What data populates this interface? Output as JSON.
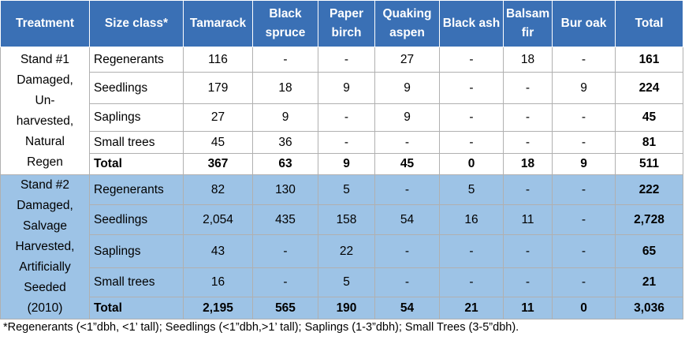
{
  "table": {
    "header": [
      "Treatment",
      "Size class*",
      "Tamarack",
      "Black spruce",
      "Paper birch",
      "Quaking aspen",
      "Black ash",
      "Balsam fir",
      "Bur oak",
      "Total"
    ],
    "groups": [
      {
        "treatment_lines": [
          "Stand #1",
          "Damaged,",
          "Un-",
          "harvested,",
          "Natural",
          "Regen"
        ],
        "rows": [
          {
            "size_class": "Regenerants",
            "values": [
              "116",
              "-",
              "-",
              "27",
              "-",
              "18",
              "-",
              "161"
            ]
          },
          {
            "size_class": "Seedlings",
            "values": [
              "179",
              "18",
              "9",
              "9",
              "-",
              "-",
              "9",
              "224"
            ]
          },
          {
            "size_class": "Saplings",
            "values": [
              "27",
              "9",
              "-",
              "9",
              "-",
              "-",
              "-",
              "45"
            ]
          },
          {
            "size_class": "Small trees",
            "values": [
              "45",
              "36",
              "-",
              "-",
              "-",
              "-",
              "-",
              "81"
            ]
          },
          {
            "size_class": "Total",
            "values": [
              "367",
              "63",
              "9",
              "45",
              "0",
              "18",
              "9",
              "511"
            ]
          }
        ]
      },
      {
        "treatment_lines": [
          "Stand #2",
          "Damaged,",
          "Salvage",
          "Harvested,",
          "Artificially",
          "Seeded",
          "(2010)"
        ],
        "rows": [
          {
            "size_class": "Regenerants",
            "values": [
              "82",
              "130",
              "5",
              "-",
              "5",
              "-",
              "-",
              "222"
            ]
          },
          {
            "size_class": "Seedlings",
            "values": [
              "2,054",
              "435",
              "158",
              "54",
              "16",
              "11",
              "-",
              "2,728"
            ]
          },
          {
            "size_class": "Saplings",
            "values": [
              "43",
              "-",
              "22",
              "-",
              "-",
              "-",
              "-",
              "65"
            ]
          },
          {
            "size_class": "Small trees",
            "values": [
              "16",
              "-",
              "5",
              "-",
              "-",
              "-",
              "-",
              "21"
            ]
          },
          {
            "size_class": "Total",
            "values": [
              "2,195",
              "565",
              "190",
              "54",
              "21",
              "11",
              "0",
              "3,036"
            ]
          }
        ]
      }
    ],
    "footnote": "*Regenerants (<1”dbh, <1’ tall); Seedlings (<1”dbh,>1’ tall); Saplings (1-3”dbh); Small Trees (3-5”dbh)."
  }
}
